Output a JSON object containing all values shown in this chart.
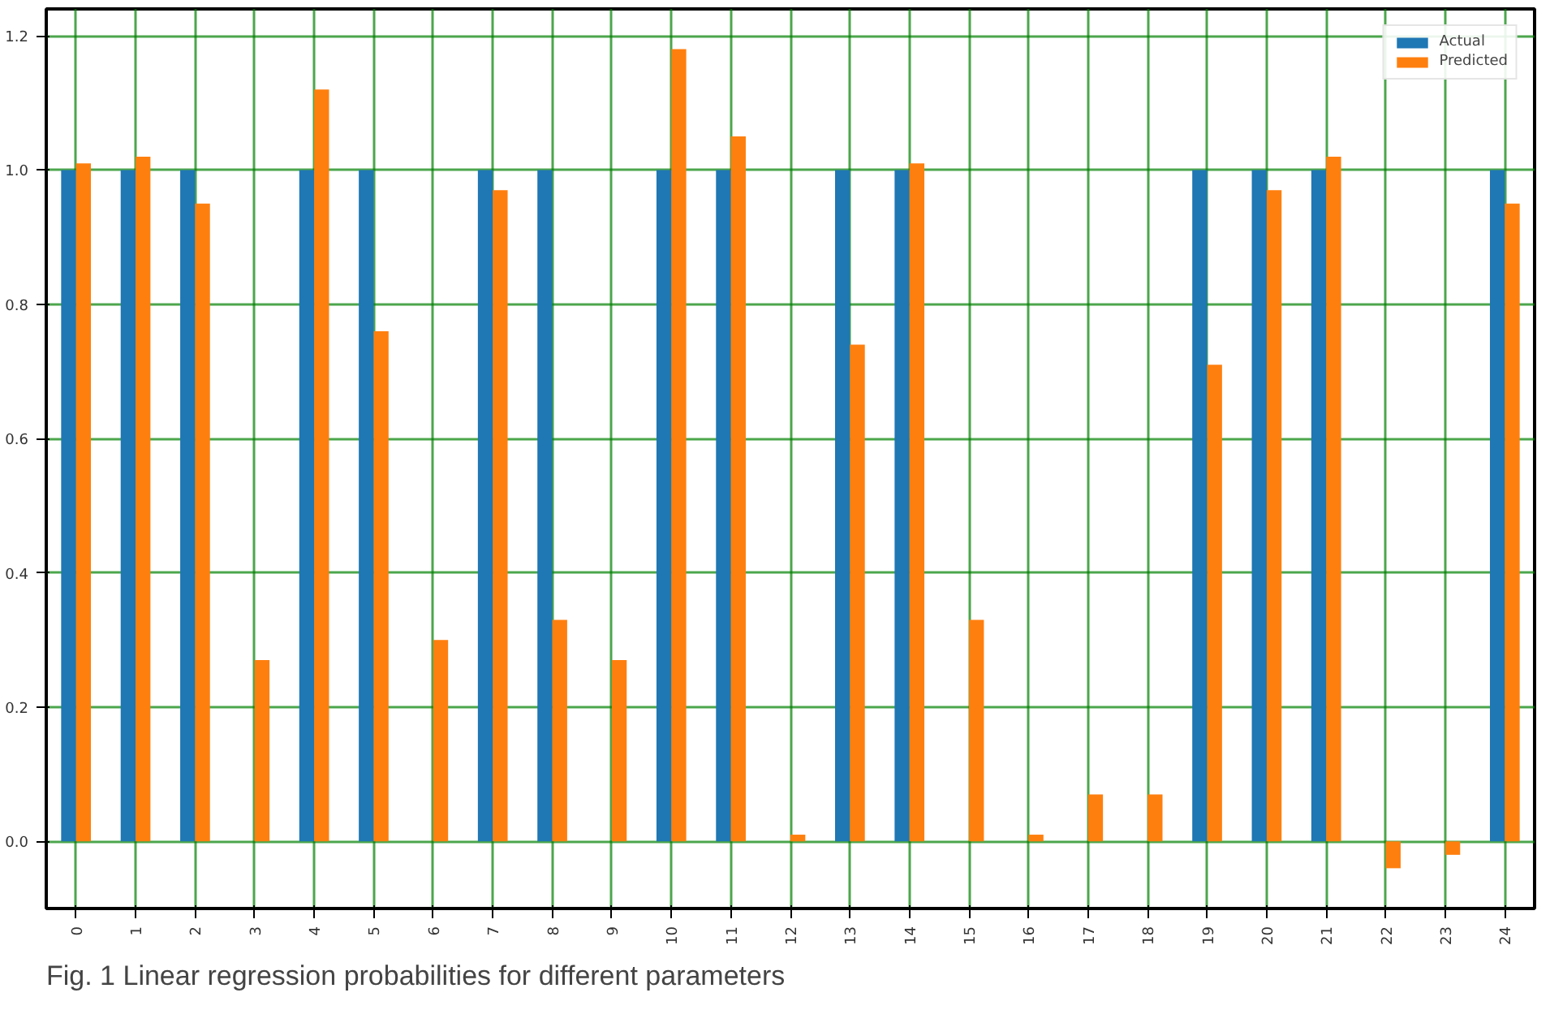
{
  "chart_data": {
    "type": "bar",
    "title": "Fig. 1  Linear regression probabilities for different parameters",
    "categories": [
      "0",
      "1",
      "2",
      "3",
      "4",
      "5",
      "6",
      "7",
      "8",
      "9",
      "10",
      "11",
      "12",
      "13",
      "14",
      "15",
      "16",
      "17",
      "18",
      "19",
      "20",
      "21",
      "22",
      "23",
      "24"
    ],
    "series": [
      {
        "name": "Actual",
        "color": "#1f77b4",
        "values": [
          1,
          1,
          1,
          0,
          1,
          1,
          0,
          1,
          1,
          0,
          1,
          1,
          0,
          1,
          1,
          0,
          0,
          0,
          0,
          1,
          1,
          1,
          0,
          0,
          1
        ]
      },
      {
        "name": "Predicted",
        "color": "#ff7f0e",
        "values": [
          1.01,
          1.02,
          0.95,
          0.27,
          1.12,
          0.76,
          0.3,
          0.97,
          0.33,
          0.27,
          1.18,
          1.05,
          0.01,
          0.74,
          1.01,
          0.33,
          0.01,
          0.07,
          0.07,
          0.71,
          0.97,
          1.02,
          -0.04,
          -0.02,
          0.95
        ]
      }
    ],
    "ylim": [
      -0.1,
      1.24
    ],
    "yticks": [
      {
        "value": 0,
        "label": "0.0"
      },
      0.2,
      0.4,
      0.6,
      0.8,
      {
        "value": 1,
        "label": "1.0"
      },
      1.2
    ],
    "grid": true,
    "legend": "top right"
  }
}
